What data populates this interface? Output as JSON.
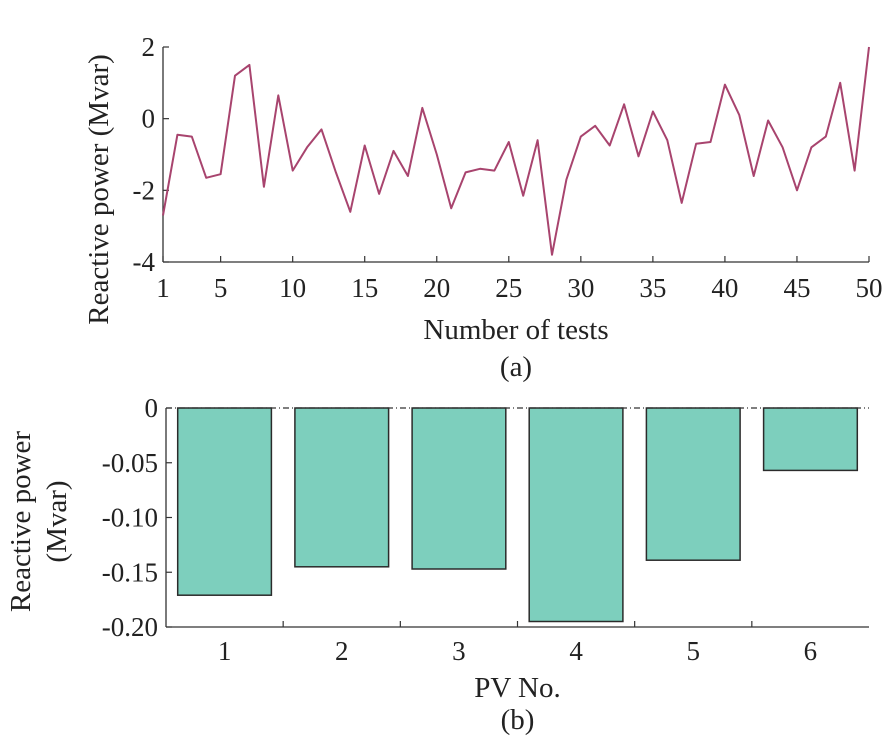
{
  "colors": {
    "line": "#a8446e",
    "bar_fill": "#7dcfbd",
    "bar_stroke": "#2b2b2b",
    "axis": "#333333",
    "zero_line": "#333333"
  },
  "chart_data": [
    {
      "type": "line",
      "caption": "(a)",
      "xlabel": "Number of tests",
      "ylabel": "Reactive power (Mvar)",
      "xlim": [
        1,
        50
      ],
      "ylim": [
        -4,
        2
      ],
      "xticks": [
        1,
        5,
        10,
        15,
        20,
        25,
        30,
        35,
        40,
        45,
        50
      ],
      "yticks": [
        2,
        0,
        -2,
        -4
      ],
      "x": [
        1,
        2,
        3,
        4,
        5,
        6,
        7,
        8,
        9,
        10,
        11,
        12,
        13,
        14,
        15,
        16,
        17,
        18,
        19,
        20,
        21,
        22,
        23,
        24,
        25,
        26,
        27,
        28,
        29,
        30,
        31,
        32,
        33,
        34,
        35,
        36,
        37,
        38,
        39,
        40,
        41,
        42,
        43,
        44,
        45,
        46,
        47,
        48,
        49,
        50
      ],
      "series": [
        {
          "name": "Reactive power",
          "values": [
            -2.7,
            -0.45,
            -0.5,
            -1.65,
            -1.55,
            1.2,
            1.5,
            -1.9,
            0.65,
            -1.45,
            -0.8,
            -0.3,
            -1.5,
            -2.6,
            -0.75,
            -2.1,
            -0.9,
            -1.6,
            0.3,
            -1.0,
            -2.5,
            -1.5,
            -1.4,
            -1.45,
            -0.65,
            -2.15,
            -0.6,
            -3.8,
            -1.7,
            -0.5,
            -0.2,
            -0.75,
            0.4,
            -1.05,
            0.2,
            -0.6,
            -2.35,
            -0.7,
            -0.65,
            0.95,
            0.1,
            -1.6,
            -0.05,
            -0.8,
            -2.0,
            -0.8,
            -0.5,
            1.0,
            -1.45,
            2.0
          ]
        }
      ]
    },
    {
      "type": "bar",
      "caption": "(b)",
      "xlabel": "PV No.",
      "ylabel": "Reactive power",
      "ylabel_unit": "(Mvar)",
      "ylim": [
        -0.2,
        0
      ],
      "yticks": [
        "0",
        "-0.05",
        "-0.10",
        "-0.15",
        "-0.20"
      ],
      "ytick_values": [
        0,
        -0.05,
        -0.1,
        -0.15,
        -0.2
      ],
      "categories": [
        "1",
        "2",
        "3",
        "4",
        "5",
        "6"
      ],
      "values": [
        -0.171,
        -0.145,
        -0.147,
        -0.195,
        -0.139,
        -0.057
      ]
    }
  ]
}
